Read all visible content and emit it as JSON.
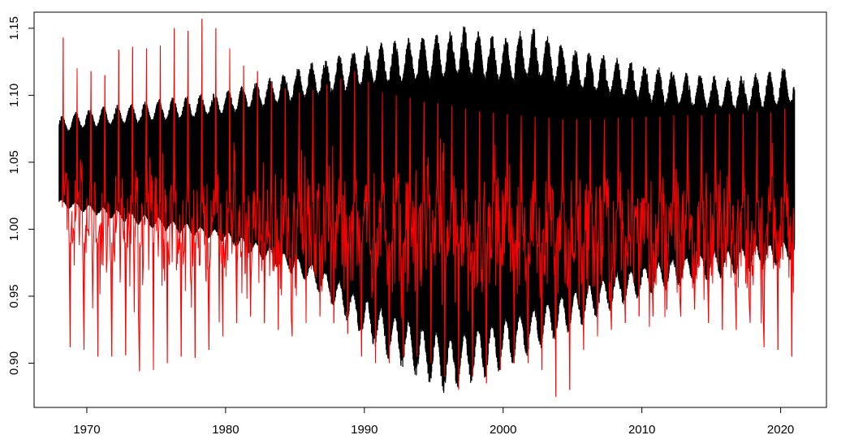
{
  "chart_data": {
    "type": "line",
    "title": "",
    "xlabel": "",
    "ylabel": "",
    "xlim": [
      1966.2,
      2023.3
    ],
    "ylim": [
      0.867,
      1.162
    ],
    "x_ticks": [
      1970,
      1980,
      1990,
      2000,
      2010,
      2020
    ],
    "x_tick_labels": [
      "1970",
      "1980",
      "1990",
      "2000",
      "2010",
      "2020"
    ],
    "y_ticks": [
      0.9,
      0.95,
      1.0,
      1.05,
      1.1,
      1.15
    ],
    "y_tick_labels": [
      "0.90",
      "0.95",
      "1.00",
      "1.05",
      "1.10",
      "1.15"
    ],
    "grid": false,
    "legend": "none",
    "x_range": [
      1968.0,
      2021.0
    ],
    "series": [
      {
        "color": "#000000",
        "style": "dense-band",
        "upper_envelope": {
          "x": [
            1968.0,
            1970,
            1975,
            1980,
            1983,
            1986,
            1988,
            1990,
            1993,
            1996,
            1997,
            2000,
            2002,
            2005,
            2008,
            2010,
            2013,
            2016,
            2019,
            2021.0
          ],
          "values": [
            1.084,
            1.09,
            1.097,
            1.104,
            1.113,
            1.124,
            1.13,
            1.137,
            1.143,
            1.147,
            1.153,
            1.143,
            1.152,
            1.136,
            1.129,
            1.124,
            1.118,
            1.114,
            1.118,
            1.124
          ]
        },
        "lower_envelope": {
          "x": [
            1968.0,
            1970,
            1975,
            1980,
            1983,
            1986,
            1988,
            1990,
            1993,
            1995,
            1996,
            1998,
            2000,
            2003,
            2006,
            2009,
            2012,
            2015,
            2018,
            2021.0
          ],
          "values": [
            1.017,
            1.012,
            1.0,
            0.99,
            0.975,
            0.96,
            0.94,
            0.915,
            0.894,
            0.882,
            0.875,
            0.885,
            0.895,
            0.912,
            0.93,
            0.945,
            0.955,
            0.962,
            0.968,
            0.975
          ]
        },
        "core_upper": {
          "x": [
            1968.0,
            1975,
            1985,
            1990,
            1995,
            2000,
            2005,
            2010,
            2015,
            2021.0
          ],
          "values": [
            1.06,
            1.064,
            1.072,
            1.076,
            1.078,
            1.077,
            1.073,
            1.068,
            1.064,
            1.062
          ]
        },
        "core_lower": {
          "x": [
            1968.0,
            1975,
            1985,
            1990,
            1995,
            2000,
            2005,
            2010,
            2015,
            2021.0
          ],
          "values": [
            1.028,
            1.018,
            0.995,
            0.98,
            0.965,
            0.97,
            0.985,
            0.997,
            1.005,
            1.01
          ]
        }
      },
      {
        "color": "#ff0000",
        "style": "seasonal-spikes",
        "spike_peaks": {
          "x": [
            1968.3,
            1969.3,
            1970.3,
            1971.3,
            1972.3,
            1973.3,
            1974.3,
            1975.3,
            1976.3,
            1977.3,
            1978.3,
            1979.3,
            1980.3,
            1981.3,
            1982.3,
            1983.3,
            1984.3,
            1985.3,
            1986.3,
            1987.3,
            1988.3,
            1989.3,
            1990.3,
            1991.3,
            1992.3,
            1993.3,
            1994.3,
            1995.3,
            1996.3,
            1997.3,
            1998.3,
            1999.3,
            2000.3,
            2001.3,
            2002.3,
            2003.3,
            2004.3,
            2005.3,
            2006.3,
            2007.3,
            2008.3,
            2009.3,
            2010.3,
            2011.3,
            2012.3,
            2013.3,
            2014.3,
            2015.3,
            2016.3,
            2017.3,
            2018.3,
            2019.3,
            2020.3
          ],
          "values": [
            1.143,
            1.12,
            1.118,
            1.115,
            1.134,
            1.136,
            1.135,
            1.137,
            1.15,
            1.148,
            1.157,
            1.15,
            1.135,
            1.122,
            1.118,
            1.11,
            1.105,
            1.102,
            1.104,
            1.108,
            1.112,
            1.118,
            1.11,
            1.102,
            1.1,
            1.098,
            1.095,
            1.094,
            1.092,
            1.09,
            1.088,
            1.087,
            1.086,
            1.085,
            1.084,
            1.083,
            1.082,
            1.082,
            1.082,
            1.082,
            1.083,
            1.083,
            1.084,
            1.084,
            1.085,
            1.085,
            1.085,
            1.086,
            1.086,
            1.086,
            1.087,
            1.087,
            1.09
          ]
        },
        "spike_troughs": {
          "x": [
            1968.8,
            1969.8,
            1970.8,
            1971.8,
            1972.8,
            1973.8,
            1974.8,
            1975.8,
            1976.8,
            1977.8,
            1978.8,
            1979.8,
            1980.8,
            1981.8,
            1982.8,
            1983.8,
            1984.8,
            1985.8,
            1986.8,
            1987.8,
            1988.8,
            1989.8,
            1990.8,
            1991.8,
            1992.8,
            1993.8,
            1994.8,
            1995.8,
            1996.8,
            1997.8,
            1998.8,
            1999.8,
            2000.8,
            2001.8,
            2002.8,
            2003.8,
            2004.8,
            2005.8,
            2006.8,
            2007.8,
            2008.8,
            2009.8,
            2010.8,
            2011.8,
            2012.8,
            2013.8,
            2014.8,
            2015.8,
            2016.8,
            2017.8,
            2018.8,
            2019.8,
            2020.8
          ],
          "values": [
            0.912,
            0.91,
            0.905,
            0.905,
            0.906,
            0.894,
            0.895,
            0.9,
            0.905,
            0.904,
            0.91,
            0.92,
            0.93,
            0.935,
            0.93,
            0.925,
            0.92,
            0.93,
            0.935,
            0.93,
            0.922,
            0.905,
            0.9,
            0.9,
            0.905,
            0.905,
            0.9,
            0.89,
            0.88,
            0.89,
            0.885,
            0.895,
            0.9,
            0.9,
            0.895,
            0.875,
            0.88,
            0.91,
            0.92,
            0.925,
            0.93,
            0.935,
            0.935,
            0.94,
            0.935,
            0.94,
            0.93,
            0.925,
            0.925,
            0.93,
            0.912,
            0.91,
            0.905
          ]
        }
      }
    ]
  }
}
